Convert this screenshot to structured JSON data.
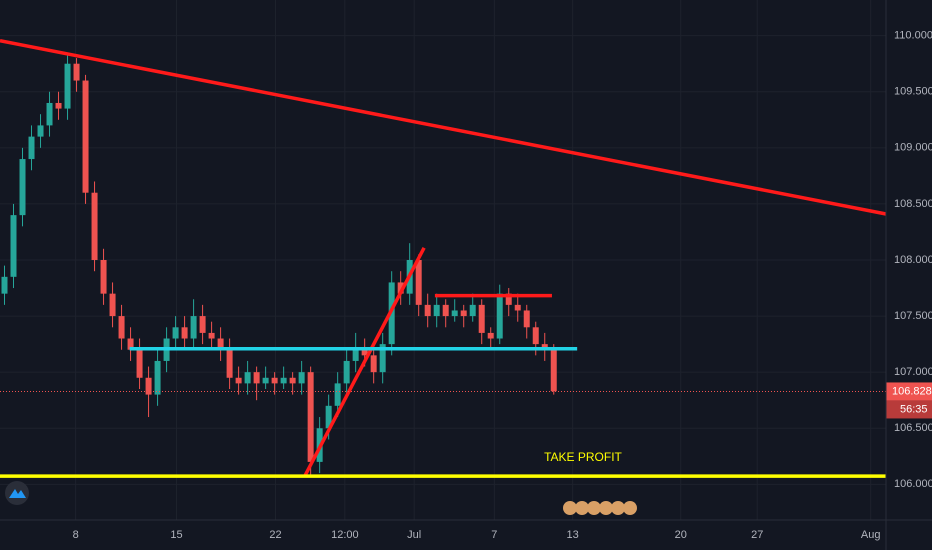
{
  "chart_data": {
    "type": "candlestick",
    "up_color": "#26a69a",
    "down_color": "#ef5350",
    "grid": true,
    "xlim": [
      0,
      98.4
    ],
    "xticks": [
      {
        "value": 8.4,
        "label": "8"
      },
      {
        "value": 19.6,
        "label": "15"
      },
      {
        "value": 30.6,
        "label": "22"
      },
      {
        "value": 38.3,
        "label": "12:00"
      },
      {
        "value": 46,
        "label": "Jul"
      },
      {
        "value": 54.9,
        "label": "7"
      },
      {
        "value": 63.6,
        "label": "13"
      },
      {
        "value": 75.6,
        "label": "20"
      },
      {
        "value": 84.1,
        "label": "27"
      },
      {
        "value": 96.7,
        "label": "Aug"
      }
    ],
    "ylim": [
      105.682,
      110.318
    ],
    "yticks": [
      {
        "value": 106,
        "label": "106.000"
      },
      {
        "value": 106.5,
        "label": "106.500"
      },
      {
        "value": 107,
        "label": "107.000"
      },
      {
        "value": 107.5,
        "label": "107.500"
      },
      {
        "value": 108,
        "label": "108.000"
      },
      {
        "value": 108.5,
        "label": "108.500"
      },
      {
        "value": 109,
        "label": "109.000"
      },
      {
        "value": 109.5,
        "label": "109.500"
      },
      {
        "value": 110,
        "label": "110.000"
      }
    ],
    "open": [
      107.7,
      107.85,
      108.4,
      108.9,
      109.1,
      109.2,
      109.4,
      109.35,
      109.75,
      109.6,
      108.6,
      108.0,
      107.7,
      107.5,
      107.3,
      107.2,
      106.95,
      106.8,
      107.1,
      107.3,
      107.4,
      107.3,
      107.5,
      107.35,
      107.3,
      107.2,
      106.95,
      106.9,
      107.0,
      106.9,
      106.95,
      106.9,
      106.95,
      106.9,
      107.0,
      106.2,
      106.5,
      106.7,
      106.9,
      107.1,
      107.2,
      107.15,
      107.0,
      107.25,
      107.8,
      107.7,
      108.0,
      107.6,
      107.5,
      107.6,
      107.5,
      107.55,
      107.5,
      107.6,
      107.35,
      107.3,
      107.7,
      107.6,
      107.55,
      107.4,
      107.25,
      107.2
    ],
    "high": [
      107.95,
      108.5,
      109.0,
      109.2,
      109.3,
      109.5,
      109.5,
      109.85,
      109.8,
      109.65,
      108.7,
      108.1,
      107.8,
      107.6,
      107.4,
      107.3,
      107.05,
      107.2,
      107.4,
      107.5,
      107.5,
      107.65,
      107.6,
      107.45,
      107.4,
      107.3,
      107.05,
      107.1,
      107.05,
      107.05,
      107.0,
      107.05,
      107.0,
      107.1,
      107.05,
      106.6,
      106.8,
      107.0,
      107.2,
      107.35,
      107.3,
      107.25,
      107.35,
      107.9,
      107.9,
      108.15,
      108.05,
      107.7,
      107.7,
      107.65,
      107.65,
      107.6,
      107.7,
      107.65,
      107.4,
      107.78,
      107.75,
      107.7,
      107.6,
      107.45,
      107.35,
      107.25
    ],
    "low": [
      107.6,
      107.75,
      108.3,
      108.8,
      109.0,
      109.1,
      109.25,
      109.25,
      109.5,
      108.5,
      107.9,
      107.6,
      107.4,
      107.2,
      107.1,
      106.85,
      106.6,
      106.7,
      107.0,
      107.2,
      107.2,
      107.2,
      107.25,
      107.2,
      107.1,
      106.85,
      106.8,
      106.8,
      106.75,
      106.85,
      106.8,
      106.85,
      106.8,
      106.8,
      106.08,
      106.1,
      106.4,
      106.6,
      106.8,
      107.0,
      107.05,
      106.9,
      106.9,
      107.15,
      107.6,
      107.6,
      107.5,
      107.4,
      107.4,
      107.4,
      107.45,
      107.4,
      107.45,
      107.25,
      107.2,
      107.25,
      107.5,
      107.45,
      107.3,
      107.15,
      107.1,
      106.8
    ],
    "close": [
      107.85,
      108.4,
      108.9,
      109.1,
      109.2,
      109.4,
      109.35,
      109.75,
      109.6,
      108.6,
      108.0,
      107.7,
      107.5,
      107.3,
      107.2,
      106.95,
      106.8,
      107.1,
      107.3,
      107.4,
      107.3,
      107.5,
      107.35,
      107.3,
      107.2,
      106.95,
      106.9,
      107.0,
      106.9,
      106.95,
      106.9,
      106.95,
      106.9,
      107.0,
      106.2,
      106.5,
      106.7,
      106.9,
      107.1,
      107.2,
      107.15,
      107.0,
      107.25,
      107.8,
      107.7,
      108.0,
      107.6,
      107.5,
      107.6,
      107.5,
      107.55,
      107.5,
      107.6,
      107.35,
      107.3,
      107.7,
      107.6,
      107.55,
      107.4,
      107.25,
      107.2,
      106.83
    ],
    "last_price": 106.828,
    "countdown": "56:35",
    "annotation": "TAKE PROFIT",
    "drawings": [
      {
        "color": "#ff1a1a",
        "x": [
          0,
          98.4
        ],
        "y": [
          109.955,
          108.41
        ]
      },
      {
        "color": "#ff1a1a",
        "x": [
          33.9,
          47.1
        ],
        "y": [
          106.082,
          108.109
        ]
      },
      {
        "color": "#ff1a1a",
        "x": [
          48.3,
          61.3
        ],
        "y": [
          107.682,
          107.682
        ]
      },
      {
        "color": "#22d3e6",
        "x": [
          14.4,
          64.1
        ],
        "y": [
          107.209,
          107.209
        ]
      },
      {
        "color": "#ffff00",
        "x": [
          0,
          98.4
        ],
        "y": [
          106.073,
          106.073
        ]
      }
    ]
  }
}
